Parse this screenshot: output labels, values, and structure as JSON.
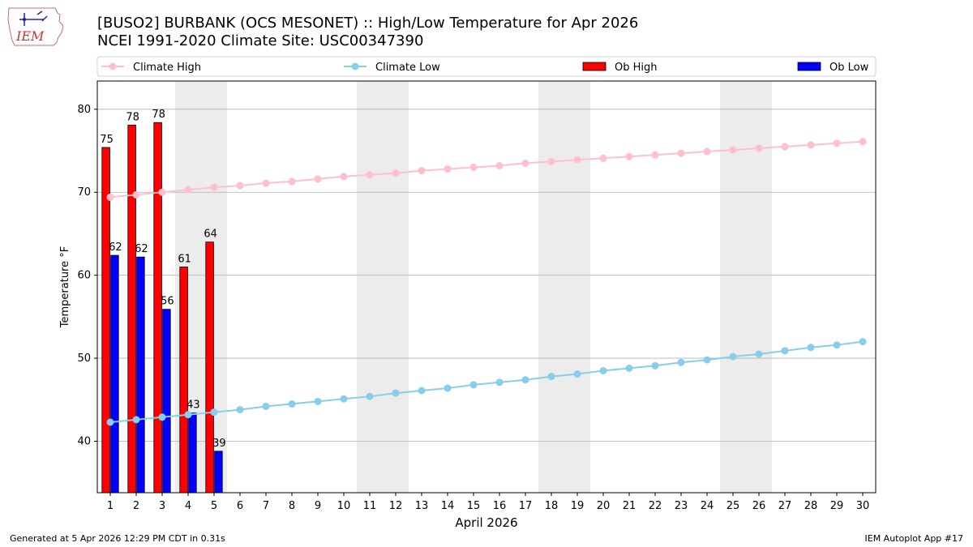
{
  "header": {
    "title_line1": "[BUSO2] BURBANK (OCS MESONET) :: High/Low Temperature for Apr 2026",
    "title_line2": "NCEI 1991-2020 Climate Site: USC00347390",
    "logo_text": "IEM"
  },
  "footer": {
    "generated": "Generated at 5 Apr 2026 12:29 PM CDT in 0.31s",
    "app": "IEM Autoplot App #17"
  },
  "colors": {
    "climate_high": "#ffc0cb",
    "climate_low": "#87ceeb",
    "ob_high": "#ff0000",
    "ob_low": "#0000ff",
    "weekend_shade": "#ececec",
    "grid": "#b0b0b0"
  },
  "chart_data": {
    "type": "bar",
    "xlabel": "April 2026",
    "ylabel": "Temperature °F",
    "xlim": [
      0.5,
      30.5
    ],
    "ylim": [
      33.8,
      83.4
    ],
    "yticks": [
      40,
      50,
      60,
      70,
      80
    ],
    "x": [
      1,
      2,
      3,
      4,
      5,
      6,
      7,
      8,
      9,
      10,
      11,
      12,
      13,
      14,
      15,
      16,
      17,
      18,
      19,
      20,
      21,
      22,
      23,
      24,
      25,
      26,
      27,
      28,
      29,
      30
    ],
    "weekend_spans": [
      [
        3.5,
        5.5
      ],
      [
        10.5,
        12.5
      ],
      [
        17.5,
        19.5
      ],
      [
        24.5,
        26.5
      ]
    ],
    "grid": "horizontal",
    "legend_position": "top",
    "series": [
      {
        "name": "Climate High",
        "kind": "line",
        "values": [
          69.4,
          69.7,
          70.0,
          70.3,
          70.6,
          70.8,
          71.1,
          71.3,
          71.6,
          71.9,
          72.1,
          72.3,
          72.6,
          72.8,
          73.0,
          73.2,
          73.5,
          73.7,
          73.9,
          74.1,
          74.3,
          74.5,
          74.7,
          74.9,
          75.1,
          75.3,
          75.5,
          75.7,
          75.9,
          76.1
        ]
      },
      {
        "name": "Climate Low",
        "kind": "line",
        "values": [
          42.3,
          42.6,
          42.9,
          43.2,
          43.5,
          43.8,
          44.2,
          44.5,
          44.8,
          45.1,
          45.4,
          45.8,
          46.1,
          46.4,
          46.8,
          47.1,
          47.4,
          47.8,
          48.1,
          48.5,
          48.8,
          49.1,
          49.5,
          49.8,
          50.2,
          50.5,
          50.9,
          51.3,
          51.6,
          52.0
        ]
      },
      {
        "name": "Ob High",
        "kind": "bar",
        "x": [
          1,
          2,
          3,
          4,
          5
        ],
        "values": [
          75.4,
          78.1,
          78.4,
          61.0,
          64.0
        ],
        "labels": [
          "75",
          "78",
          "78",
          "61",
          "64"
        ]
      },
      {
        "name": "Ob Low",
        "kind": "bar",
        "x": [
          1,
          2,
          3,
          4,
          5
        ],
        "values": [
          62.4,
          62.2,
          55.9,
          43.4,
          38.8
        ],
        "labels": [
          "62",
          "62",
          "56",
          "43",
          "39"
        ]
      }
    ]
  }
}
